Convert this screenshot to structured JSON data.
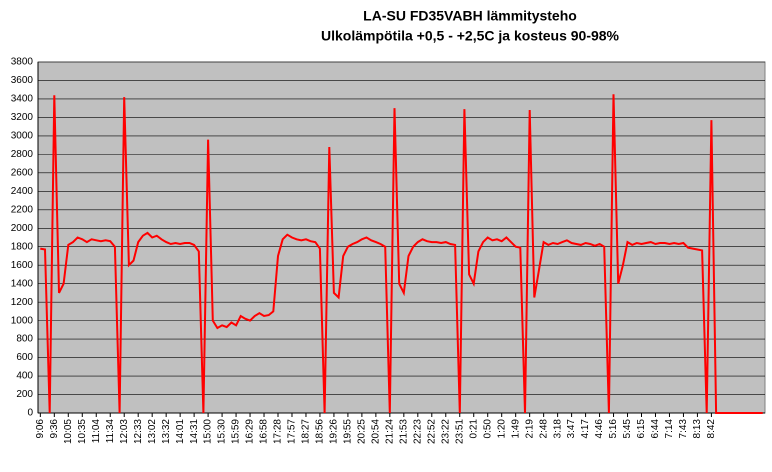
{
  "chart_data": {
    "type": "line",
    "title": "LA-SU FD35VABH lämmitysteho",
    "subtitle": "Ulkolämpötila  +0,5 - +2,5C ja kosteus 90-98%",
    "categories": [
      "9:06",
      null,
      null,
      "9:36",
      null,
      null,
      "10:05",
      null,
      null,
      "10:35",
      null,
      null,
      "11:04",
      null,
      null,
      "11:34",
      null,
      null,
      "12:03",
      null,
      null,
      "12:33",
      null,
      null,
      "13:02",
      null,
      null,
      "13:32",
      null,
      null,
      "14:01",
      null,
      null,
      "14:31",
      null,
      null,
      "15:00",
      null,
      null,
      "15:30",
      null,
      null,
      "15:59",
      null,
      null,
      "16:29",
      null,
      null,
      "16:58",
      null,
      null,
      "17:28",
      null,
      null,
      "17:57",
      null,
      null,
      "18:27",
      null,
      null,
      "18:56",
      null,
      null,
      "19:26",
      null,
      null,
      "19:55",
      null,
      null,
      "20:25",
      null,
      null,
      "20:54",
      null,
      null,
      "21:24",
      null,
      null,
      "21:53",
      null,
      null,
      "22:23",
      null,
      null,
      "22:52",
      null,
      null,
      "23:22",
      null,
      null,
      "23:51",
      null,
      null,
      "0:21",
      null,
      null,
      "0:50",
      null,
      null,
      "1:20",
      null,
      null,
      "1:49",
      null,
      null,
      "2:19",
      null,
      null,
      "2:48",
      null,
      null,
      "3:18",
      null,
      null,
      "3:47",
      null,
      null,
      "4:17",
      null,
      null,
      "4:46",
      null,
      null,
      "5:16",
      null,
      null,
      "5:45",
      null,
      null,
      "6:15",
      null,
      null,
      "6:44",
      null,
      null,
      "7:14",
      null,
      null,
      "7:43",
      null,
      null,
      "8:13",
      null,
      null,
      "8:42",
      null,
      null,
      null,
      null,
      null,
      null,
      null,
      null,
      null,
      null,
      null
    ],
    "series": [
      {
        "name": "lämmitysteho",
        "color": "#ff0000",
        "values": [
          1780,
          1770,
          0,
          3440,
          1300,
          1400,
          1820,
          1850,
          1900,
          1880,
          1850,
          1880,
          1870,
          1860,
          1870,
          1860,
          1800,
          0,
          3420,
          1600,
          1650,
          1850,
          1920,
          1950,
          1900,
          1920,
          1880,
          1850,
          1830,
          1840,
          1830,
          1840,
          1840,
          1820,
          1750,
          0,
          2960,
          1000,
          920,
          950,
          930,
          980,
          950,
          1050,
          1020,
          1000,
          1050,
          1080,
          1050,
          1060,
          1100,
          1700,
          1880,
          1930,
          1900,
          1880,
          1870,
          1880,
          1860,
          1850,
          1780,
          0,
          2880,
          1300,
          1250,
          1700,
          1800,
          1830,
          1850,
          1880,
          1900,
          1870,
          1850,
          1830,
          1800,
          0,
          3300,
          1400,
          1300,
          1700,
          1800,
          1850,
          1880,
          1860,
          1850,
          1850,
          1840,
          1850,
          1830,
          1820,
          0,
          3290,
          1500,
          1400,
          1750,
          1850,
          1900,
          1870,
          1880,
          1860,
          1900,
          1850,
          1800,
          1790,
          0,
          3280,
          1250,
          1550,
          1850,
          1820,
          1840,
          1830,
          1850,
          1870,
          1840,
          1830,
          1820,
          1840,
          1830,
          1810,
          1830,
          1800,
          0,
          3450,
          1400,
          1600,
          1850,
          1820,
          1840,
          1830,
          1840,
          1850,
          1830,
          1840,
          1840,
          1830,
          1840,
          1830,
          1840,
          1790,
          1780,
          1770,
          1760,
          0,
          3170,
          0,
          0,
          0,
          0,
          0,
          0,
          0,
          0,
          0,
          0,
          0
        ]
      }
    ],
    "ylim": [
      0,
      3800
    ],
    "yticks": [
      0,
      200,
      400,
      600,
      800,
      1000,
      1200,
      1400,
      1600,
      1800,
      2000,
      2200,
      2400,
      2600,
      2800,
      3000,
      3200,
      3400,
      3600,
      3800
    ],
    "grid": true,
    "plot_background": "#c0c0c0"
  }
}
